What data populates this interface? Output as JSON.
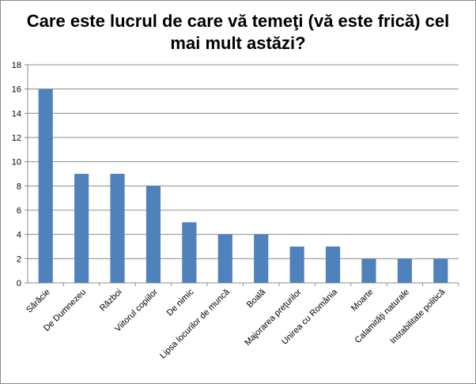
{
  "chart_data": {
    "type": "bar",
    "title": "Care este lucrul de care vă temeţi (vă este frică) cel mai mult astăzi?",
    "categories": [
      "Sărăcie",
      "De Dumnezeu",
      "Război",
      "Viitorul copiilor",
      "De nimic",
      "Lipsa locurilor de muncă",
      "Boală",
      "Majorarea preţurilor",
      "Unirea cu România",
      "Moarte",
      "Calamităţi naturale",
      "Instabilitate politică"
    ],
    "values": [
      16,
      9,
      9,
      8,
      5,
      4,
      4,
      3,
      3,
      2,
      2,
      2
    ],
    "yticks": [
      "0",
      "2",
      "4",
      "6",
      "8",
      "10",
      "12",
      "14",
      "16",
      "18"
    ],
    "ylim": [
      0,
      18
    ],
    "grid": true,
    "legend": "none",
    "bar_color": "#4f81bd"
  }
}
